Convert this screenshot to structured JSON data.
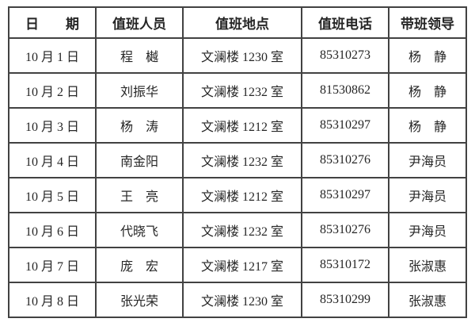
{
  "colors": {
    "border": "#424242",
    "text": "#262626",
    "background": "#ffffff"
  },
  "roster": {
    "headers": {
      "date": "日　　期",
      "person": "值班人员",
      "location": "值班地点",
      "phone": "值班电话",
      "leader": "带班领导"
    },
    "rows": [
      {
        "date": "10 月 1 日",
        "person": "程　樾",
        "location": "文澜楼 1230 室",
        "phone": "85310273",
        "leader": "杨　静"
      },
      {
        "date": "10 月 2 日",
        "person": "刘振华",
        "location": "文澜楼 1232 室",
        "phone": "81530862",
        "leader": "杨　静"
      },
      {
        "date": "10 月 3 日",
        "person": "杨　涛",
        "location": "文澜楼 1212 室",
        "phone": "85310297",
        "leader": "杨　静"
      },
      {
        "date": "10 月 4 日",
        "person": "南金阳",
        "location": "文澜楼 1232 室",
        "phone": "85310276",
        "leader": "尹海员"
      },
      {
        "date": "10 月 5 日",
        "person": "王　亮",
        "location": "文澜楼 1212 室",
        "phone": "85310297",
        "leader": "尹海员"
      },
      {
        "date": "10 月 6 日",
        "person": "代晓飞",
        "location": "文澜楼 1232 室",
        "phone": "85310276",
        "leader": "尹海员"
      },
      {
        "date": "10 月 7 日",
        "person": "庞　宏",
        "location": "文澜楼 1217 室",
        "phone": "85310172",
        "leader": "张淑惠"
      },
      {
        "date": "10 月 8 日",
        "person": "张光荣",
        "location": "文澜楼 1230 室",
        "phone": "85310299",
        "leader": "张淑惠"
      }
    ]
  }
}
